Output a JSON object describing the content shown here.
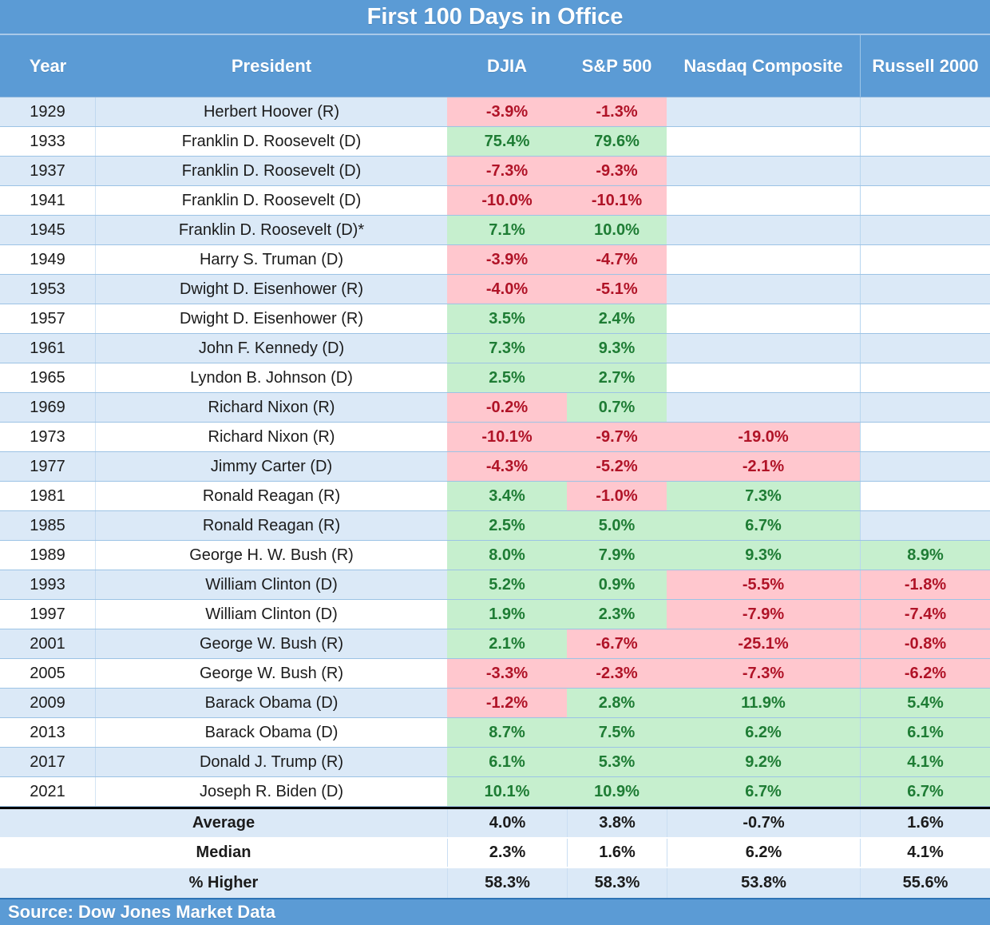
{
  "colors": {
    "header_blue": "#5b9bd5",
    "stripe_blue": "#dbe9f7",
    "grid_line": "#9cc3e5",
    "positive_bg": "#c6efce",
    "positive_text": "#1e7c34",
    "negative_bg": "#ffc7ce",
    "negative_text": "#b01327"
  },
  "chart_data": {
    "type": "table",
    "title": "First 100 Days in Office",
    "source": "Source: Dow Jones Market Data",
    "columns": [
      "Year",
      "President",
      "DJIA",
      "S&P 500",
      "Nasdaq Composite",
      "Russell 2000"
    ],
    "value_format": "percent_change",
    "cell_color_rule": "negative values on pink with dark-red text, positive values on green with dark-green text, empty cells unshaded",
    "rows": [
      {
        "year": "1929",
        "president": "Herbert Hoover (R)",
        "djia": "-3.9%",
        "sp500": "-1.3%",
        "nasdaq": "",
        "russell": ""
      },
      {
        "year": "1933",
        "president": "Franklin D. Roosevelt (D)",
        "djia": "75.4%",
        "sp500": "79.6%",
        "nasdaq": "",
        "russell": ""
      },
      {
        "year": "1937",
        "president": "Franklin D. Roosevelt (D)",
        "djia": "-7.3%",
        "sp500": "-9.3%",
        "nasdaq": "",
        "russell": ""
      },
      {
        "year": "1941",
        "president": "Franklin D. Roosevelt (D)",
        "djia": "-10.0%",
        "sp500": "-10.1%",
        "nasdaq": "",
        "russell": ""
      },
      {
        "year": "1945",
        "president": "Franklin D. Roosevelt (D)*",
        "djia": "7.1%",
        "sp500": "10.0%",
        "nasdaq": "",
        "russell": ""
      },
      {
        "year": "1949",
        "president": "Harry S. Truman (D)",
        "djia": "-3.9%",
        "sp500": "-4.7%",
        "nasdaq": "",
        "russell": ""
      },
      {
        "year": "1953",
        "president": "Dwight D. Eisenhower (R)",
        "djia": "-4.0%",
        "sp500": "-5.1%",
        "nasdaq": "",
        "russell": ""
      },
      {
        "year": "1957",
        "president": "Dwight D. Eisenhower (R)",
        "djia": "3.5%",
        "sp500": "2.4%",
        "nasdaq": "",
        "russell": ""
      },
      {
        "year": "1961",
        "president": "John F. Kennedy (D)",
        "djia": "7.3%",
        "sp500": "9.3%",
        "nasdaq": "",
        "russell": ""
      },
      {
        "year": "1965",
        "president": "Lyndon B. Johnson (D)",
        "djia": "2.5%",
        "sp500": "2.7%",
        "nasdaq": "",
        "russell": ""
      },
      {
        "year": "1969",
        "president": "Richard Nixon (R)",
        "djia": "-0.2%",
        "sp500": "0.7%",
        "nasdaq": "",
        "russell": ""
      },
      {
        "year": "1973",
        "president": "Richard Nixon (R)",
        "djia": "-10.1%",
        "sp500": "-9.7%",
        "nasdaq": "-19.0%",
        "russell": ""
      },
      {
        "year": "1977",
        "president": "Jimmy Carter (D)",
        "djia": "-4.3%",
        "sp500": "-5.2%",
        "nasdaq": "-2.1%",
        "russell": ""
      },
      {
        "year": "1981",
        "president": "Ronald Reagan (R)",
        "djia": "3.4%",
        "sp500": "-1.0%",
        "nasdaq": "7.3%",
        "russell": ""
      },
      {
        "year": "1985",
        "president": "Ronald Reagan (R)",
        "djia": "2.5%",
        "sp500": "5.0%",
        "nasdaq": "6.7%",
        "russell": ""
      },
      {
        "year": "1989",
        "president": "George H. W. Bush (R)",
        "djia": "8.0%",
        "sp500": "7.9%",
        "nasdaq": "9.3%",
        "russell": "8.9%"
      },
      {
        "year": "1993",
        "president": "William Clinton (D)",
        "djia": "5.2%",
        "sp500": "0.9%",
        "nasdaq": "-5.5%",
        "russell": "-1.8%"
      },
      {
        "year": "1997",
        "president": "William Clinton (D)",
        "djia": "1.9%",
        "sp500": "2.3%",
        "nasdaq": "-7.9%",
        "russell": "-7.4%"
      },
      {
        "year": "2001",
        "president": "George W. Bush (R)",
        "djia": "2.1%",
        "sp500": "-6.7%",
        "nasdaq": "-25.1%",
        "russell": "-0.8%"
      },
      {
        "year": "2005",
        "president": "George W. Bush (R)",
        "djia": "-3.3%",
        "sp500": "-2.3%",
        "nasdaq": "-7.3%",
        "russell": "-6.2%"
      },
      {
        "year": "2009",
        "president": "Barack Obama (D)",
        "djia": "-1.2%",
        "sp500": "2.8%",
        "nasdaq": "11.9%",
        "russell": "5.4%"
      },
      {
        "year": "2013",
        "president": "Barack Obama (D)",
        "djia": "8.7%",
        "sp500": "7.5%",
        "nasdaq": "6.2%",
        "russell": "6.1%"
      },
      {
        "year": "2017",
        "president": "Donald J. Trump (R)",
        "djia": "6.1%",
        "sp500": "5.3%",
        "nasdaq": "9.2%",
        "russell": "4.1%"
      },
      {
        "year": "2021",
        "president": "Joseph R. Biden (D)",
        "djia": "10.1%",
        "sp500": "10.9%",
        "nasdaq": "6.7%",
        "russell": "6.7%"
      }
    ],
    "summary": [
      {
        "label": "Average",
        "djia": "4.0%",
        "sp500": "3.8%",
        "nasdaq": "-0.7%",
        "russell": "1.6%"
      },
      {
        "label": "Median",
        "djia": "2.3%",
        "sp500": "1.6%",
        "nasdaq": "6.2%",
        "russell": "4.1%"
      },
      {
        "label": "% Higher",
        "djia": "58.3%",
        "sp500": "58.3%",
        "nasdaq": "53.8%",
        "russell": "55.6%"
      }
    ]
  }
}
